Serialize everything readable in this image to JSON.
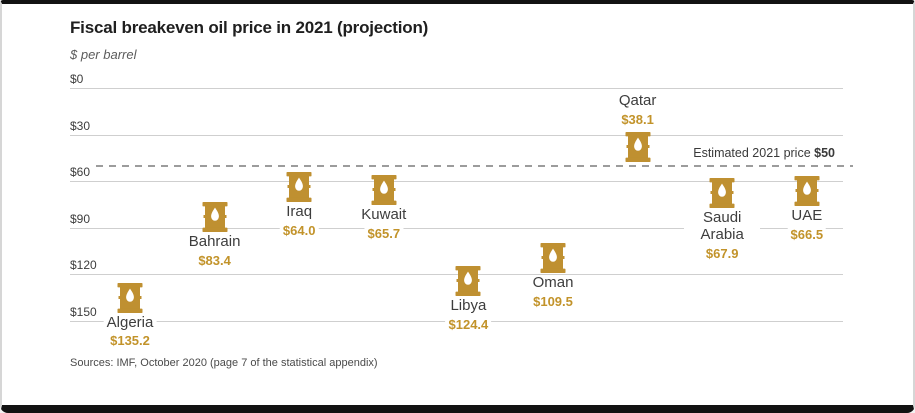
{
  "header": {
    "title": "Fiscal breakeven oil price in 2021 (projection)",
    "subtitle": "$ per barrel",
    "source": "Sources: IMF, October 2020 (page 7 of the statistical appendix)"
  },
  "colors": {
    "gold": "#bf9031",
    "value_text": "#c2932a",
    "grid": "#cfcfcf",
    "dashed_line": "#9c9c9c",
    "label_text": "#3d3d3d"
  },
  "icons": {
    "data_point": "oil-barrel-icon"
  },
  "chart_data": {
    "type": "scatter",
    "title": "Fiscal breakeven oil price in 2021 (projection)",
    "ylabel": "$ per barrel",
    "xlabel": "",
    "y_axis_inverted": true,
    "ylim": [
      0,
      150
    ],
    "grid": "horizontal",
    "y_ticks": [
      {
        "value": 0,
        "label": "$0"
      },
      {
        "value": 30,
        "label": "$30"
      },
      {
        "value": 60,
        "label": "$60"
      },
      {
        "value": 90,
        "label": "$90"
      },
      {
        "value": 120,
        "label": "$120"
      },
      {
        "value": 150,
        "label": "$150"
      }
    ],
    "reference_line": {
      "value": 50,
      "style": "dashed",
      "label": "Estimated 2021 price",
      "label_value": "$50"
    },
    "points": [
      {
        "name": "Algeria",
        "value": 135.2,
        "value_label": "$135.2",
        "label_position": "below"
      },
      {
        "name": "Bahrain",
        "value": 83.4,
        "value_label": "$83.4",
        "label_position": "below"
      },
      {
        "name": "Iraq",
        "value": 64.0,
        "value_label": "$64.0",
        "label_position": "below"
      },
      {
        "name": "Kuwait",
        "value": 65.7,
        "value_label": "$65.7",
        "label_position": "below"
      },
      {
        "name": "Libya",
        "value": 124.4,
        "value_label": "$124.4",
        "label_position": "below"
      },
      {
        "name": "Oman",
        "value": 109.5,
        "value_label": "$109.5",
        "label_position": "below"
      },
      {
        "name": "Qatar",
        "value": 38.1,
        "value_label": "$38.1",
        "label_position": "above"
      },
      {
        "name": "Saudi Arabia",
        "value": 67.9,
        "value_label": "$67.9",
        "label_position": "below"
      },
      {
        "name": "UAE",
        "value": 66.5,
        "value_label": "$66.5",
        "label_position": "below"
      }
    ]
  }
}
